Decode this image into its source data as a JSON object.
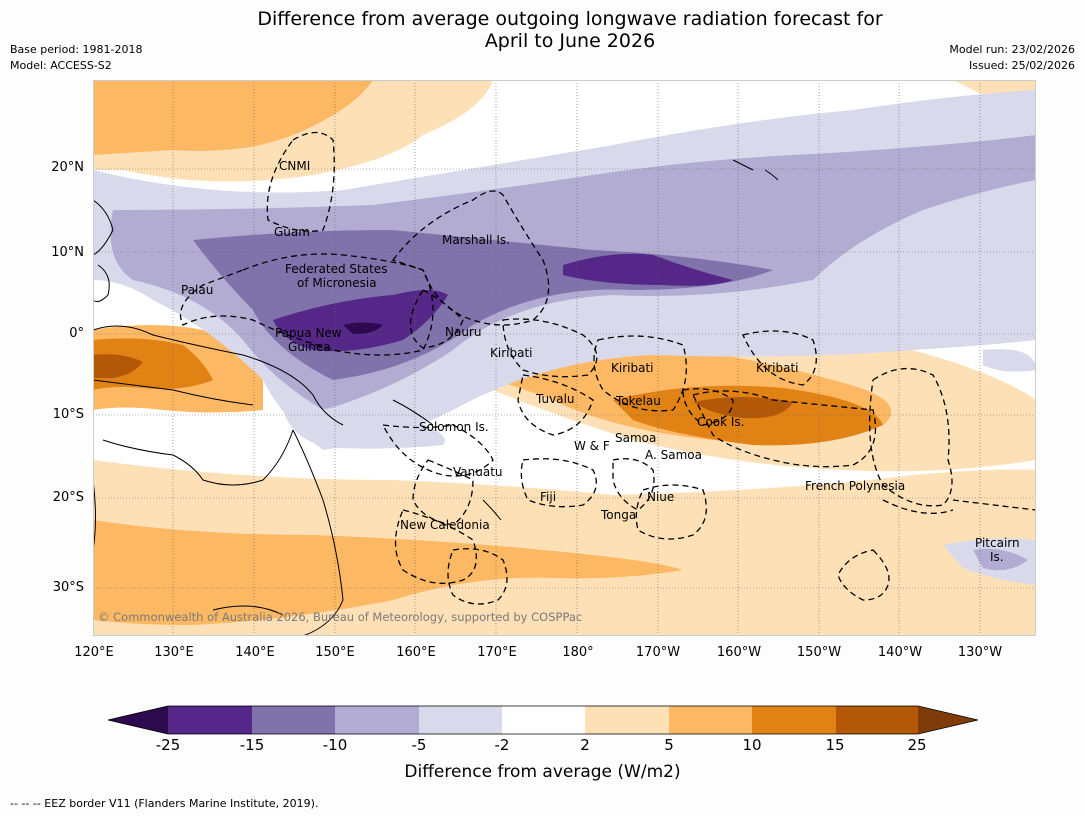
{
  "title_line1": "Difference from average outgoing longwave radiation forecast for",
  "title_line2": "April to June 2026",
  "meta": {
    "base_period": "Base period: 1981-2018",
    "model": "Model: ACCESS-S2",
    "model_run": "Model run: 23/02/2026",
    "issued": "Issued: 25/02/2026"
  },
  "lat_ticks": [
    "20°N",
    "10°N",
    "0°",
    "10°S",
    "20°S",
    "30°S"
  ],
  "lon_ticks": [
    "120°E",
    "130°E",
    "140°E",
    "150°E",
    "160°E",
    "170°E",
    "180°",
    "170°W",
    "160°W",
    "150°W",
    "140°W",
    "130°W"
  ],
  "regions": {
    "cnmi": "CNMI",
    "guam": "Guam",
    "marshall": "Marshall Is.",
    "fsm_line1": "Federated States",
    "fsm_line2": "of Micronesia",
    "palau": "Palau",
    "png_line1": "Papua New",
    "png_line2": "Guinea",
    "nauru": "Nauru",
    "kiribati_w": "Kiribati",
    "kiribati_c": "Kiribati",
    "kiribati_e": "Kiribati",
    "tuvalu": "Tuvalu",
    "tokelau": "Tokelau",
    "cook": "Cook Is.",
    "solomon": "Solomon Is.",
    "wf": "W & F",
    "samoa": "Samoa",
    "asamoa": "A. Samoa",
    "vanuatu": "Vanuatu",
    "fiji": "Fiji",
    "niue": "Niue",
    "frpoly": "French Polynesia",
    "tonga": "Tonga",
    "newcal": "New Caledonia",
    "pitcairn_line1": "Pitcairn",
    "pitcairn_line2": "Is."
  },
  "copyright": "© Commonwealth of Australia 2026, Bureau of Meteorology, supported by COSPPac",
  "colorbar": {
    "tick_labels": [
      "-25",
      "-15",
      "-10",
      "-5",
      "-2",
      "2",
      "5",
      "10",
      "15",
      "25"
    ],
    "colors": [
      "#2d0a4e",
      "#542788",
      "#8073ac",
      "#b2abd2",
      "#d8daeb",
      "#ffffff",
      "#fee0b6",
      "#fdb863",
      "#e08214",
      "#b35806",
      "#7f3b08"
    ],
    "label": "Difference from average (W/m2)"
  },
  "eez_note": "-- -- -- EEZ border V11 (Flanders Marine Institute, 2019)."
}
